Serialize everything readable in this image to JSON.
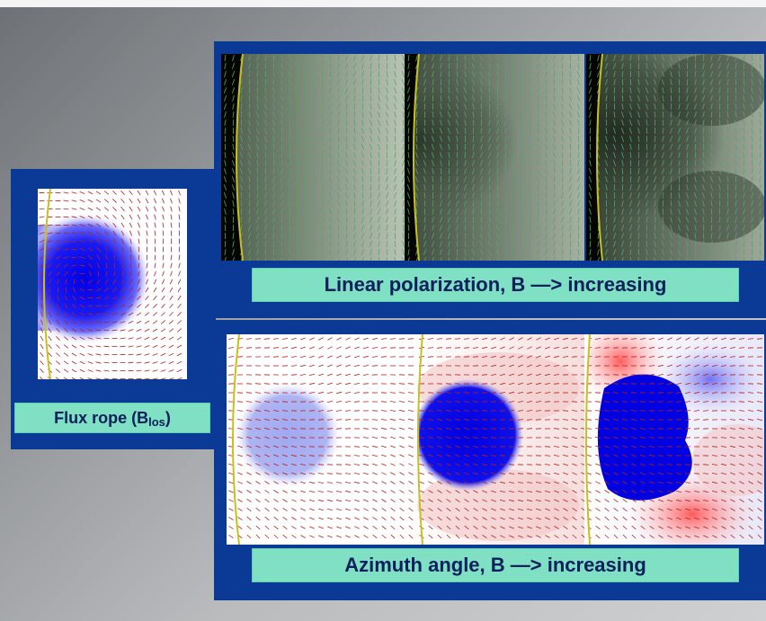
{
  "flux_rope": {
    "label_main": "Flux rope (B",
    "label_sub": "los",
    "label_close": ")"
  },
  "linear_polarization": {
    "label": "Linear polarization, B —> increasing"
  },
  "azimuth_angle": {
    "label": "Azimuth angle, B —> increasing"
  },
  "colors": {
    "panel_blue": "#0b3a96",
    "label_bg": "#7fe0c4",
    "label_text": "#0a1f5c",
    "arrow_red": "#b22222",
    "arrow_green": "#4caf50",
    "limb_yellow": "#c8c020"
  }
}
